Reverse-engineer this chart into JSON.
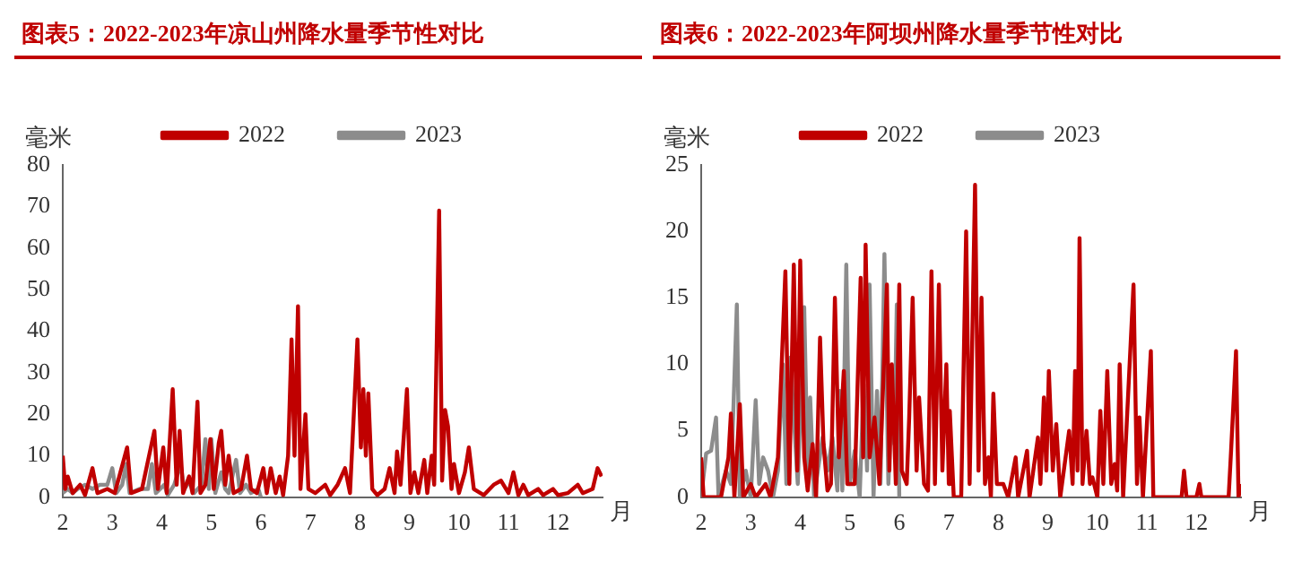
{
  "chart_data": [
    {
      "type": "line",
      "title": "图表5：2022-2023年凉山州降水量季节性对比",
      "ylabel": "毫米",
      "xlabel": "月",
      "xlim": [
        2,
        12.9
      ],
      "xticks": [
        2,
        3,
        4,
        5,
        6,
        7,
        8,
        9,
        10,
        11,
        12
      ],
      "ylim": [
        0,
        80
      ],
      "yticks": [
        0,
        10,
        20,
        30,
        40,
        50,
        60,
        70,
        80
      ],
      "grid": false,
      "legend": "top",
      "marker": "none",
      "series": [
        {
          "name": "2022",
          "color": "#c00000",
          "x": [
            2.0,
            2.05,
            2.1,
            2.2,
            2.35,
            2.45,
            2.6,
            2.7,
            2.9,
            3.05,
            3.3,
            3.38,
            3.6,
            3.85,
            3.92,
            4.03,
            4.1,
            4.22,
            4.3,
            4.36,
            4.43,
            4.55,
            4.62,
            4.72,
            4.78,
            4.88,
            4.98,
            5.05,
            5.15,
            5.2,
            5.28,
            5.35,
            5.45,
            5.6,
            5.72,
            5.8,
            5.92,
            6.05,
            6.12,
            6.2,
            6.3,
            6.38,
            6.45,
            6.55,
            6.62,
            6.68,
            6.75,
            6.8,
            6.9,
            6.96,
            7.1,
            7.3,
            7.4,
            7.55,
            7.7,
            7.8,
            7.95,
            8.02,
            8.07,
            8.12,
            8.17,
            8.25,
            8.35,
            8.5,
            8.6,
            8.7,
            8.75,
            8.82,
            8.95,
            9.02,
            9.1,
            9.18,
            9.3,
            9.36,
            9.45,
            9.5,
            9.6,
            9.66,
            9.72,
            9.78,
            9.85,
            9.9,
            10.0,
            10.12,
            10.2,
            10.3,
            10.5,
            10.7,
            10.85,
            11.0,
            11.1,
            11.2,
            11.3,
            11.4,
            11.6,
            11.7,
            11.9,
            12.0,
            12.2,
            12.4,
            12.5,
            12.7,
            12.8,
            12.88
          ],
          "values": [
            10,
            2,
            5,
            1,
            3,
            0.5,
            7,
            1,
            2,
            1,
            12,
            1,
            2,
            16,
            2,
            12,
            1,
            26,
            3,
            16,
            1,
            5,
            1,
            23,
            1,
            3,
            14,
            2,
            13,
            16,
            3,
            10,
            1,
            2,
            10,
            2,
            1,
            7,
            1,
            7,
            1,
            5,
            0.5,
            10,
            38,
            10,
            46,
            2,
            20,
            2,
            1,
            3,
            0.5,
            3,
            7,
            1,
            38,
            12,
            26,
            10,
            25,
            2,
            0.5,
            2,
            7,
            1,
            11,
            3,
            26,
            1,
            6,
            1,
            9,
            1,
            10,
            3,
            69,
            4,
            21,
            17,
            2,
            8,
            1,
            6,
            12,
            2,
            0.5,
            3,
            4,
            1,
            6,
            0.5,
            3,
            0.5,
            2,
            0.5,
            2,
            0.5,
            1,
            3,
            1,
            2,
            7,
            5
          ]
        },
        {
          "name": "2023",
          "color": "#8c8c8c",
          "x": [
            2.0,
            2.1,
            2.2,
            2.3,
            2.45,
            2.6,
            2.75,
            2.9,
            3.0,
            3.08,
            3.2,
            3.28,
            3.35,
            3.55,
            3.72,
            3.8,
            3.88,
            4.05,
            4.12,
            4.25,
            4.38,
            4.45,
            4.58,
            4.65,
            4.8,
            4.88,
            4.95,
            5.0,
            5.08,
            5.2,
            5.28,
            5.35,
            5.5,
            5.58,
            5.7,
            5.8,
            5.95,
            6.0
          ],
          "values": [
            1,
            2,
            1,
            2,
            3,
            2,
            3,
            3,
            7,
            1,
            3,
            8,
            1,
            2,
            2,
            8,
            1,
            3,
            0.5,
            3,
            8,
            2,
            4,
            1,
            3,
            14,
            2,
            14,
            1,
            6,
            2,
            1,
            9,
            1,
            3,
            1,
            2,
            0
          ]
        }
      ]
    },
    {
      "type": "line",
      "title": "图表6：2022-2023年阿坝州降水量季节性对比",
      "ylabel": "毫米",
      "xlabel": "月",
      "xlim": [
        2,
        12.9
      ],
      "xticks": [
        2,
        3,
        4,
        5,
        6,
        7,
        8,
        9,
        10,
        11,
        12
      ],
      "ylim": [
        0,
        25
      ],
      "yticks": [
        0,
        5,
        10,
        15,
        20,
        25
      ],
      "grid": false,
      "legend": "top",
      "marker": "none",
      "series": [
        {
          "name": "2022",
          "color": "#c00000",
          "x": [
            2.0,
            2.05,
            2.4,
            2.55,
            2.6,
            2.67,
            2.78,
            2.85,
            3.0,
            3.1,
            3.3,
            3.4,
            3.55,
            3.7,
            3.78,
            3.87,
            3.94,
            4.0,
            4.08,
            4.15,
            4.25,
            4.32,
            4.4,
            4.47,
            4.55,
            4.62,
            4.7,
            4.78,
            4.88,
            4.95,
            5.1,
            5.22,
            5.27,
            5.32,
            5.4,
            5.5,
            5.6,
            5.75,
            5.8,
            5.85,
            5.93,
            6.0,
            6.05,
            6.15,
            6.2,
            6.27,
            6.35,
            6.4,
            6.5,
            6.58,
            6.65,
            6.72,
            6.8,
            6.87,
            6.95,
            7.0,
            7.02,
            7.1,
            7.25,
            7.35,
            7.42,
            7.53,
            7.6,
            7.66,
            7.73,
            7.8,
            7.85,
            7.9,
            7.97,
            8.1,
            8.2,
            8.35,
            8.4,
            8.58,
            8.63,
            8.8,
            8.85,
            8.92,
            8.97,
            9.02,
            9.1,
            9.17,
            9.25,
            9.43,
            9.5,
            9.55,
            9.6,
            9.64,
            9.7,
            9.78,
            9.85,
            9.9,
            10.0,
            10.06,
            10.12,
            10.2,
            10.28,
            10.35,
            10.4,
            10.45,
            10.52,
            10.73,
            10.8,
            10.85,
            10.92,
            11.08,
            11.13,
            11.7,
            11.75,
            11.8,
            12.0,
            12.06,
            12.1,
            12.65,
            12.7,
            12.8,
            12.85,
            12.9
          ],
          "values": [
            3,
            0,
            0,
            3,
            6.3,
            0,
            7,
            0,
            1,
            0,
            1,
            0,
            3,
            17,
            1,
            17.5,
            2,
            17.8,
            3,
            0.5,
            4,
            0,
            12,
            4,
            0.5,
            1,
            15,
            3,
            9.5,
            1,
            1,
            16.5,
            3,
            19,
            3,
            6,
            1,
            16,
            2,
            10,
            1,
            16,
            2,
            1,
            6,
            15,
            2,
            7.5,
            1,
            0.5,
            17,
            1,
            16,
            2,
            10,
            1,
            6.5,
            0,
            0,
            20,
            1,
            23.5,
            2,
            15,
            1,
            3,
            0,
            7.8,
            1,
            1,
            0,
            3,
            0,
            3.5,
            0,
            4.5,
            1,
            7.5,
            2,
            9.5,
            2,
            5.5,
            0,
            5,
            1,
            9.5,
            2,
            19.5,
            1,
            5,
            1,
            1.5,
            0,
            6.5,
            1,
            9.5,
            1,
            2.5,
            0.5,
            10,
            0,
            16,
            1,
            6,
            0,
            11,
            0,
            0,
            2,
            0,
            0,
            1,
            0,
            0,
            3.5,
            11,
            0,
            1
          ]
        },
        {
          "name": "2023",
          "color": "#8c8c8c",
          "x": [
            2.0,
            2.1,
            2.2,
            2.3,
            2.35,
            2.5,
            2.6,
            2.72,
            2.78,
            2.9,
            3.0,
            3.1,
            3.17,
            3.25,
            3.35,
            3.45,
            3.55,
            3.65,
            3.72,
            3.8,
            3.87,
            3.95,
            4.08,
            4.15,
            4.2,
            4.28,
            4.45,
            4.55,
            4.65,
            4.75,
            4.8,
            4.85,
            4.93,
            5.0,
            5.1,
            5.2,
            5.28,
            5.35,
            5.4,
            5.48,
            5.55,
            5.62,
            5.7,
            5.78,
            5.85,
            5.9,
            5.95,
            6.0
          ],
          "values": [
            0,
            3.3,
            3.5,
            6,
            0,
            2,
            1,
            14.5,
            0,
            2,
            0,
            7.3,
            1,
            3,
            2,
            0,
            2,
            10,
            1,
            10.5,
            6,
            1,
            14.3,
            2,
            7.5,
            0,
            4.5,
            2,
            4.5,
            0.5,
            8,
            0.5,
            17.5,
            1,
            3.5,
            0,
            8.5,
            2,
            16,
            0,
            8,
            1,
            18.3,
            1,
            7.5,
            4,
            14.5,
            0
          ]
        }
      ]
    }
  ]
}
